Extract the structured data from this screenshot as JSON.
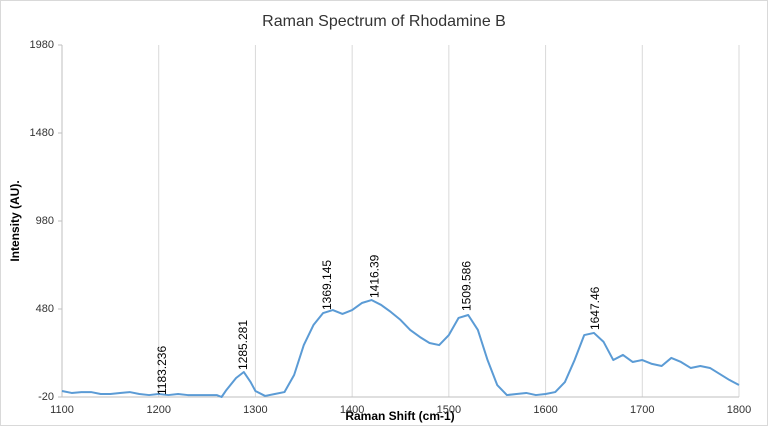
{
  "chart_data": {
    "type": "line",
    "title": "Raman Spectrum of Rhodamine B",
    "x_label": "Raman Shift (cm-1)",
    "y_label": "Intensity (AU).",
    "xlim": [
      1100,
      1800
    ],
    "xticks": [
      1100,
      1200,
      1300,
      1400,
      1500,
      1600,
      1700,
      1800
    ],
    "ylim": [
      -20,
      1980
    ],
    "yticks": [
      -20,
      480,
      980,
      1480,
      1980
    ],
    "grid": "x",
    "series": [
      {
        "name": "Raman Spectrum",
        "color": "#5b9bd5",
        "x": [
          1100,
          1110,
          1120,
          1130,
          1140,
          1150,
          1160,
          1170,
          1180,
          1190,
          1200,
          1210,
          1220,
          1230,
          1240,
          1250,
          1260,
          1265,
          1270,
          1280,
          1288,
          1295,
          1300,
          1310,
          1320,
          1330,
          1340,
          1350,
          1360,
          1370,
          1380,
          1390,
          1400,
          1410,
          1420,
          1430,
          1440,
          1450,
          1460,
          1470,
          1480,
          1490,
          1500,
          1510,
          1520,
          1530,
          1540,
          1550,
          1560,
          1570,
          1580,
          1590,
          1600,
          1610,
          1620,
          1630,
          1640,
          1650,
          1660,
          1670,
          1680,
          1690,
          1700,
          1710,
          1720,
          1730,
          1740,
          1750,
          1760,
          1770,
          1780,
          1790,
          1800
        ],
        "values": [
          14,
          3,
          8,
          8,
          -3,
          -3,
          3,
          8,
          -3,
          -9,
          -3,
          -9,
          -3,
          -9,
          -9,
          -9,
          -9,
          -20,
          20,
          88,
          122,
          65,
          14,
          -14,
          -3,
          8,
          105,
          275,
          389,
          457,
          474,
          452,
          474,
          514,
          531,
          503,
          463,
          418,
          361,
          321,
          287,
          275,
          332,
          429,
          446,
          361,
          190,
          48,
          -9,
          -3,
          3,
          -9,
          -3,
          8,
          65,
          190,
          332,
          344,
          293,
          190,
          219,
          179,
          190,
          168,
          156,
          202,
          179,
          145,
          156,
          145,
          111,
          77,
          48
        ]
      }
    ],
    "annotations": [
      {
        "text": "1183.236",
        "x": 1204,
        "y": -20
      },
      {
        "text": "1285.281",
        "x": 1288,
        "y": 122
      },
      {
        "text": "1369.145",
        "x": 1375,
        "y": 463
      },
      {
        "text": "1416.39",
        "x": 1424,
        "y": 531
      },
      {
        "text": "1509.586",
        "x": 1519,
        "y": 457
      },
      {
        "text": "1647.46",
        "x": 1652,
        "y": 349
      }
    ]
  }
}
